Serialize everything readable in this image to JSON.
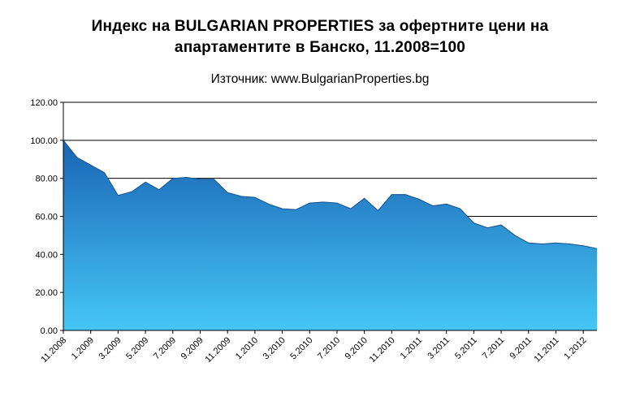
{
  "title": "Индекс на BULGARIAN PROPERTIES за офертните цени на апартаментите в Банско, 11.2008=100",
  "subtitle": "Източник: www.BulgarianProperties.bg",
  "chart_data": {
    "type": "area",
    "title": "Индекс на BULGARIAN PROPERTIES за офертните цени на апартаментите в Банско, 11.2008=100",
    "source": "Източник: www.BulgarianProperties.bg",
    "x": [
      "11.2008",
      "12.2008",
      "1.2009",
      "2.2009",
      "3.2009",
      "4.2009",
      "5.2009",
      "6.2009",
      "7.2009",
      "8.2009",
      "9.2009",
      "10.2009",
      "11.2009",
      "12.2009",
      "1.2010",
      "2.2010",
      "3.2010",
      "4.2010",
      "5.2010",
      "6.2010",
      "7.2010",
      "8.2010",
      "9.2010",
      "10.2010",
      "11.2010",
      "12.2010",
      "1.2011",
      "2.2011",
      "3.2011",
      "4.2011",
      "5.2011",
      "6.2011",
      "7.2011",
      "8.2011",
      "9.2011",
      "10.2011",
      "11.2011",
      "12.2011",
      "1.2012",
      "2.2012"
    ],
    "values": [
      100,
      91,
      87,
      83,
      71,
      73,
      78,
      74,
      80,
      80.5,
      79.5,
      79.5,
      72.5,
      70.5,
      70,
      66.5,
      64,
      63.5,
      67,
      67.5,
      67,
      64,
      69.5,
      63,
      71.5,
      71.5,
      69,
      65.5,
      66.5,
      64,
      56.5,
      54,
      55.5,
      50,
      46,
      45.5,
      46,
      45.5,
      44.5,
      43
    ],
    "x_label_every": 2,
    "x_tick_labels": [
      "11.2008",
      "1.2009",
      "3.2009",
      "5.2009",
      "7.2009",
      "9.2009",
      "11.2009",
      "1.2010",
      "3.2010",
      "5.2010",
      "7.2010",
      "9.2010",
      "11.2010",
      "1.2011",
      "3.2011",
      "5.2011",
      "7.2011",
      "9.2011",
      "11.2011",
      "1.2012"
    ],
    "ylim": [
      0,
      120
    ],
    "yticks": [
      0,
      20,
      40,
      60,
      80,
      100,
      120
    ],
    "ytick_labels": [
      "0.00",
      "20.00",
      "40.00",
      "60.00",
      "80.00",
      "100.00",
      "120.00"
    ],
    "grid": true,
    "legend": false,
    "colors": {
      "area_top": "#1a64b4",
      "area_bottom": "#45c7f6",
      "edge": "#10508f",
      "grid": "#000000",
      "axis": "#000000",
      "text": "#000000",
      "background": "#ffffff"
    }
  }
}
